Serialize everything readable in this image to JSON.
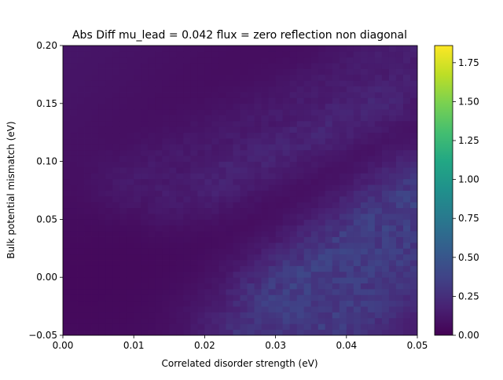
{
  "chart_data": {
    "type": "heatmap",
    "title": "Abs Diff mu_lead = 0.042 flux = zero reflection non diagonal",
    "xlabel": "Correlated disorder strength (eV)",
    "ylabel": "Bulk potential mismatch (eV)",
    "xlim": [
      0.0,
      0.05
    ],
    "ylim": [
      -0.05,
      0.2
    ],
    "x_ticks": [
      "0.00",
      "0.01",
      "0.02",
      "0.03",
      "0.04",
      "0.05"
    ],
    "y_ticks": [
      "−0.05",
      "0.00",
      "0.05",
      "0.10",
      "0.15",
      "0.20"
    ],
    "colorbar": {
      "vmin": 0.0,
      "vmax": 1.86,
      "ticks": [
        "0.00",
        "0.25",
        "0.50",
        "0.75",
        "1.00",
        "1.25",
        "1.50",
        "1.75"
      ],
      "colormap": "viridis"
    },
    "grid": {
      "nx": 50,
      "ny": 50
    },
    "background_level": 0.12,
    "stripes": [
      {
        "start": [
          0.0,
          0.0
        ],
        "end": [
          0.05,
          0.2
        ],
        "peak": 0.12,
        "width": 0.01
      },
      {
        "start": [
          0.01,
          0.08
        ],
        "end": [
          0.05,
          0.2
        ],
        "peak": 0.22,
        "width": 0.004
      },
      {
        "start": [
          0.015,
          0.07
        ],
        "end": [
          0.048,
          0.17
        ],
        "peak": 0.24,
        "width": 0.004
      },
      {
        "start": [
          0.02,
          0.08
        ],
        "end": [
          0.045,
          0.155
        ],
        "peak": 0.28,
        "width": 0.004
      },
      {
        "start": [
          0.025,
          -0.04
        ],
        "end": [
          0.05,
          0.08
        ],
        "peak": 0.28,
        "width": 0.005
      },
      {
        "start": [
          0.027,
          -0.05
        ],
        "end": [
          0.05,
          0.06
        ],
        "peak": 0.38,
        "width": 0.005
      },
      {
        "start": [
          0.03,
          -0.02
        ],
        "end": [
          0.05,
          0.07
        ],
        "peak": 0.45,
        "width": 0.005
      },
      {
        "start": [
          0.033,
          -0.03
        ],
        "end": [
          0.05,
          0.045
        ],
        "peak": 0.42,
        "width": 0.005
      },
      {
        "start": [
          0.037,
          -0.045
        ],
        "end": [
          0.05,
          0.025
        ],
        "peak": 0.4,
        "width": 0.005
      }
    ],
    "low_valleys": [
      {
        "start": [
          0.0,
          0.02
        ],
        "end": [
          0.03,
          0.2
        ],
        "depth": 0.08,
        "width": 0.012
      },
      {
        "start": [
          0.005,
          -0.05
        ],
        "end": [
          0.05,
          0.12
        ],
        "depth": 0.07,
        "width": 0.012
      }
    ]
  }
}
